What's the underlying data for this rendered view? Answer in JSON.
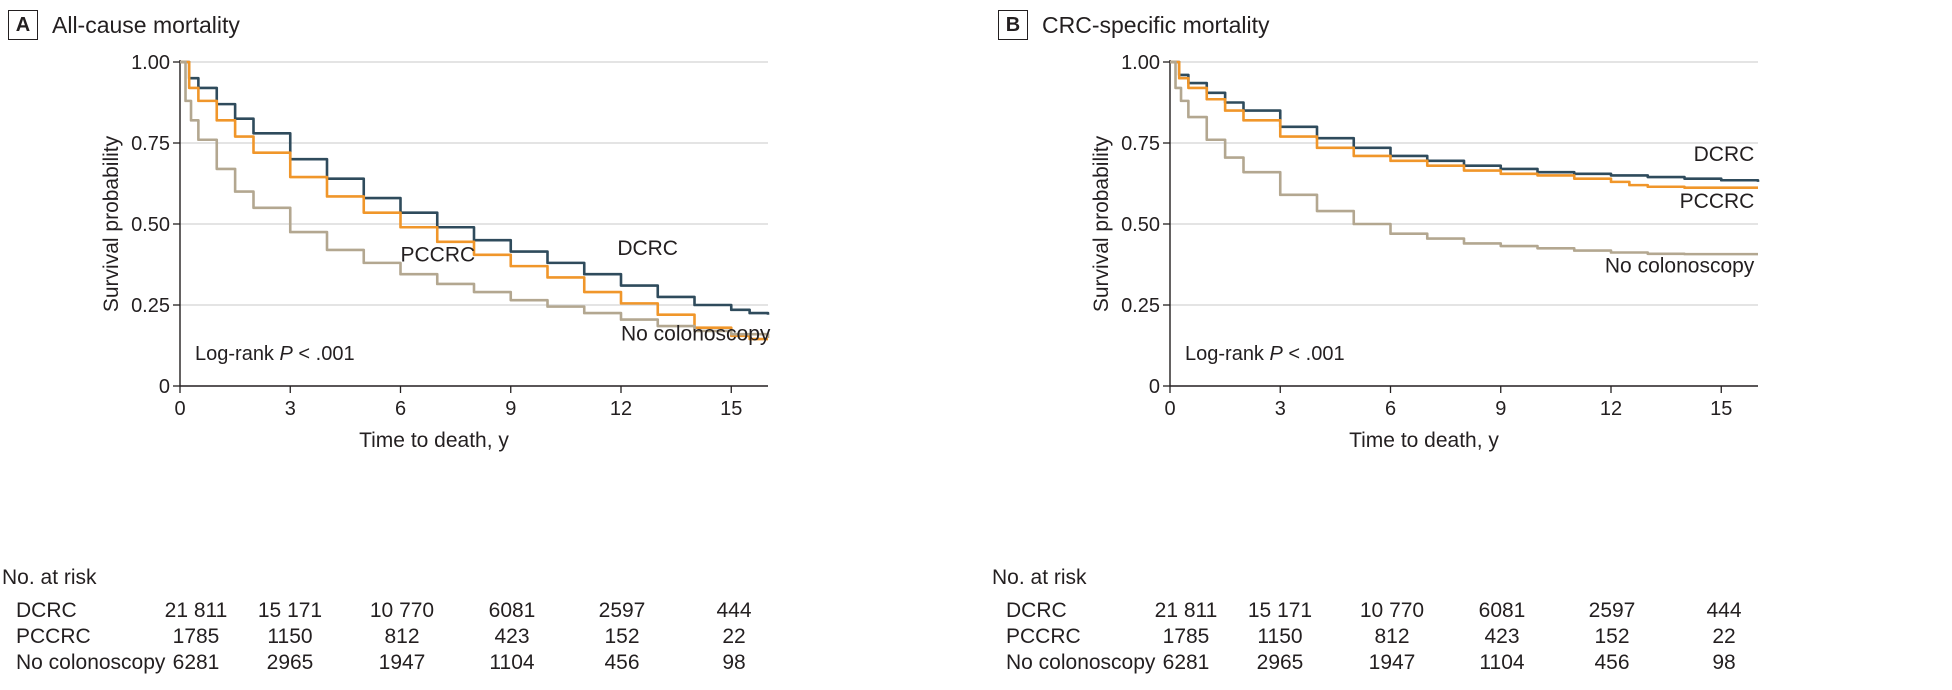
{
  "chart_data": [
    {
      "type": "line",
      "panel_label": "A",
      "title": "All-cause mortality",
      "xlabel": "Time to death, y",
      "ylabel": "Survival probability",
      "xlim": [
        0,
        16
      ],
      "ylim": [
        0,
        1
      ],
      "xticks": [
        0,
        3,
        6,
        9,
        12,
        15
      ],
      "yticks": [
        0,
        0.25,
        0.5,
        0.75,
        1.0
      ],
      "ytick_labels": [
        "0",
        "0.25",
        "0.50",
        "0.75",
        "1.00"
      ],
      "grid": "horizontal",
      "annotation": {
        "text": "Log-rank ",
        "italic": "P",
        "rest": " < .001"
      },
      "series": [
        {
          "name": "DCRC",
          "color": "#2f4b5c",
          "x": [
            0,
            0.25,
            0.5,
            1,
            1.5,
            2,
            3,
            4,
            5,
            6,
            7,
            8,
            9,
            10,
            11,
            12,
            13,
            14,
            15,
            15.5,
            16
          ],
          "y": [
            1.0,
            0.95,
            0.92,
            0.87,
            0.825,
            0.78,
            0.7,
            0.64,
            0.58,
            0.535,
            0.49,
            0.45,
            0.415,
            0.38,
            0.345,
            0.31,
            0.275,
            0.25,
            0.235,
            0.225,
            0.22
          ]
        },
        {
          "name": "PCCRC",
          "color": "#f0962a",
          "x": [
            0,
            0.25,
            0.5,
            1,
            1.5,
            2,
            3,
            4,
            5,
            6,
            7,
            8,
            9,
            10,
            11,
            12,
            13,
            14,
            15,
            15.5,
            16
          ],
          "y": [
            1.0,
            0.92,
            0.88,
            0.82,
            0.77,
            0.72,
            0.645,
            0.585,
            0.535,
            0.49,
            0.445,
            0.405,
            0.37,
            0.335,
            0.29,
            0.255,
            0.22,
            0.18,
            0.155,
            0.145,
            0.145
          ]
        },
        {
          "name": "No colonoscopy",
          "color": "#b3a790",
          "x": [
            0,
            0.15,
            0.3,
            0.5,
            1,
            1.5,
            2,
            3,
            4,
            5,
            6,
            7,
            8,
            9,
            10,
            11,
            12,
            13,
            14,
            15,
            16
          ],
          "y": [
            1.0,
            0.88,
            0.82,
            0.76,
            0.67,
            0.6,
            0.55,
            0.475,
            0.42,
            0.38,
            0.345,
            0.315,
            0.29,
            0.265,
            0.245,
            0.225,
            0.205,
            0.185,
            0.17,
            0.16,
            0.148
          ]
        }
      ],
      "labels": [
        {
          "text": "DCRC",
          "x": 11.9,
          "y": 0.405
        },
        {
          "text": "PCCRC",
          "x": 6.0,
          "y": 0.385
        },
        {
          "text": "No colonoscopy",
          "x": 12.0,
          "y": 0.14
        }
      ],
      "risk_table": {
        "title": "No. at risk",
        "rows": [
          {
            "label": "DCRC",
            "values": [
              "21 811",
              "15 171",
              "10 770",
              "6081",
              "2597",
              "444"
            ]
          },
          {
            "label": "PCCRC",
            "values": [
              "1785",
              "1150",
              "812",
              "423",
              "152",
              "22"
            ]
          },
          {
            "label": "No colonoscopy",
            "values": [
              "6281",
              "2965",
              "1947",
              "1104",
              "456",
              "98"
            ]
          }
        ]
      }
    },
    {
      "type": "line",
      "panel_label": "B",
      "title": "CRC-specific mortality",
      "xlabel": "Time to death, y",
      "ylabel": "Survival probability",
      "xlim": [
        0,
        16
      ],
      "ylim": [
        0,
        1
      ],
      "xticks": [
        0,
        3,
        6,
        9,
        12,
        15
      ],
      "yticks": [
        0,
        0.25,
        0.5,
        0.75,
        1.0
      ],
      "ytick_labels": [
        "0",
        "0.25",
        "0.50",
        "0.75",
        "1.00"
      ],
      "grid": "horizontal",
      "annotation": {
        "text": "Log-rank ",
        "italic": "P",
        "rest": " < .001"
      },
      "series": [
        {
          "name": "DCRC",
          "color": "#2f4b5c",
          "x": [
            0,
            0.25,
            0.5,
            1,
            1.5,
            2,
            3,
            4,
            5,
            6,
            7,
            8,
            9,
            10,
            11,
            12,
            13,
            14,
            15,
            16
          ],
          "y": [
            1.0,
            0.96,
            0.935,
            0.905,
            0.875,
            0.85,
            0.8,
            0.765,
            0.735,
            0.71,
            0.695,
            0.68,
            0.67,
            0.66,
            0.655,
            0.65,
            0.645,
            0.64,
            0.635,
            0.63
          ]
        },
        {
          "name": "PCCRC",
          "color": "#f0962a",
          "x": [
            0,
            0.25,
            0.5,
            1,
            1.5,
            2,
            3,
            4,
            5,
            6,
            7,
            8,
            9,
            10,
            11,
            12,
            12.5,
            13,
            14,
            15,
            16
          ],
          "y": [
            1.0,
            0.95,
            0.92,
            0.885,
            0.85,
            0.82,
            0.77,
            0.735,
            0.71,
            0.695,
            0.68,
            0.665,
            0.655,
            0.65,
            0.64,
            0.63,
            0.62,
            0.615,
            0.612,
            0.612,
            0.612
          ]
        },
        {
          "name": "No colonoscopy",
          "color": "#b3a790",
          "x": [
            0,
            0.15,
            0.3,
            0.5,
            1,
            1.5,
            2,
            3,
            4,
            5,
            6,
            7,
            8,
            9,
            10,
            11,
            12,
            13,
            14,
            15,
            16
          ],
          "y": [
            1.0,
            0.92,
            0.88,
            0.83,
            0.76,
            0.705,
            0.66,
            0.59,
            0.54,
            0.5,
            0.47,
            0.455,
            0.44,
            0.432,
            0.425,
            0.418,
            0.412,
            0.408,
            0.407,
            0.407,
            0.407
          ]
        }
      ],
      "labels": [
        {
          "text": "DCRC",
          "x": 15.9,
          "y": 0.695,
          "anchor": "end"
        },
        {
          "text": "PCCRC",
          "x": 15.9,
          "y": 0.55,
          "anchor": "end"
        },
        {
          "text": "No colonoscopy",
          "x": 15.9,
          "y": 0.35,
          "anchor": "end"
        }
      ],
      "risk_table": {
        "title": "No. at risk",
        "rows": [
          {
            "label": "DCRC",
            "values": [
              "21 811",
              "15 171",
              "10 770",
              "6081",
              "2597",
              "444"
            ]
          },
          {
            "label": "PCCRC",
            "values": [
              "1785",
              "1150",
              "812",
              "423",
              "152",
              "22"
            ]
          },
          {
            "label": "No colonoscopy",
            "values": [
              "6281",
              "2965",
              "1947",
              "1104",
              "456",
              "98"
            ]
          }
        ]
      }
    }
  ]
}
